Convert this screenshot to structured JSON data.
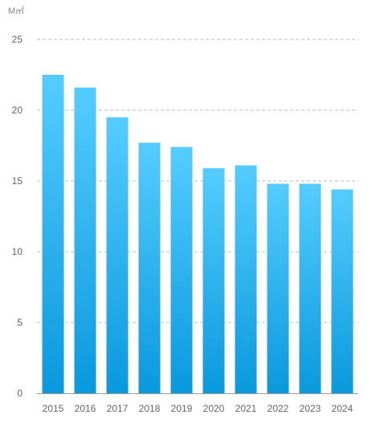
{
  "chart_data": {
    "type": "bar",
    "unit_label": "M㎡",
    "categories": [
      "2015",
      "2016",
      "2017",
      "2018",
      "2019",
      "2020",
      "2021",
      "2022",
      "2023",
      "2024"
    ],
    "series": [
      {
        "values": [
          22.5,
          21.6,
          19.5,
          17.7,
          17.4,
          15.9,
          16.1,
          14.8,
          14.8,
          14.4
        ]
      }
    ],
    "ylim": [
      0,
      25
    ],
    "yticks": [
      0,
      5,
      10,
      15,
      20,
      25
    ],
    "grid": true,
    "colors": {
      "bar_top": "#55CCFF",
      "bar_bottom": "#0A99DD",
      "grid": "#BBBBBB",
      "axis": "#999999"
    }
  }
}
